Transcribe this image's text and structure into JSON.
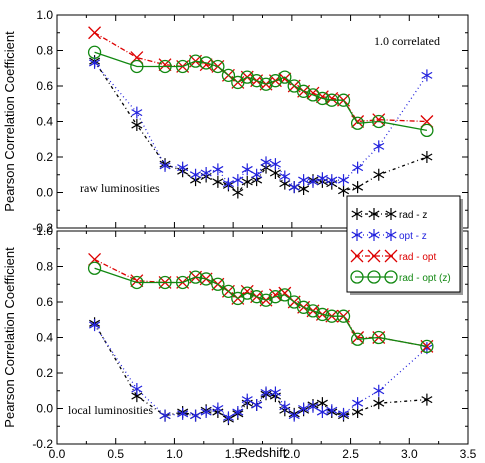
{
  "chart_data": [
    {
      "type": "line",
      "panel": "top",
      "xlim": [
        0.0,
        3.5
      ],
      "ylim": [
        -0.2,
        1.0
      ],
      "xticks": [],
      "yticks": [
        "-0.2",
        "0.0",
        "0.2",
        "0.4",
        "0.6",
        "0.8",
        "1.0"
      ],
      "xlabel": "",
      "ylabel": "Pearson Correlation Coefficient",
      "annotations": [
        "1.0 correlated",
        "raw luminosities"
      ],
      "series": [
        {
          "name": "rad - z",
          "color": "#000000",
          "marker": "asterisk",
          "dash": "3,3,1,3",
          "x": [
            0.32,
            0.68,
            0.92,
            1.07,
            1.18,
            1.27,
            1.37,
            1.46,
            1.54,
            1.62,
            1.7,
            1.78,
            1.86,
            1.94,
            2.02,
            2.1,
            2.18,
            2.26,
            2.34,
            2.44,
            2.56,
            2.74,
            3.15
          ],
          "y": [
            0.74,
            0.38,
            0.16,
            0.12,
            0.07,
            0.09,
            0.06,
            0.04,
            0.0,
            0.06,
            0.07,
            0.14,
            0.11,
            0.05,
            0.03,
            0.02,
            0.07,
            0.06,
            0.05,
            0.01,
            0.03,
            0.1,
            0.2
          ]
        },
        {
          "name": "opt - z",
          "color": "#2222dd",
          "marker": "asterisk",
          "dash": "1,3",
          "x": [
            0.32,
            0.68,
            0.92,
            1.07,
            1.18,
            1.27,
            1.37,
            1.46,
            1.54,
            1.62,
            1.7,
            1.78,
            1.86,
            1.94,
            2.02,
            2.1,
            2.18,
            2.26,
            2.34,
            2.44,
            2.56,
            2.74,
            3.15
          ],
          "y": [
            0.73,
            0.45,
            0.15,
            0.14,
            0.1,
            0.11,
            0.13,
            0.05,
            0.07,
            0.13,
            0.1,
            0.17,
            0.16,
            0.09,
            0.03,
            0.07,
            0.06,
            0.08,
            0.07,
            0.07,
            0.14,
            0.26,
            0.66
          ]
        },
        {
          "name": "rad - opt",
          "color": "#dd0000",
          "marker": "x",
          "dash": "5,2,1,2",
          "x": [
            0.32,
            0.68,
            0.92,
            1.07,
            1.18,
            1.27,
            1.37,
            1.46,
            1.54,
            1.62,
            1.7,
            1.78,
            1.86,
            1.94,
            2.02,
            2.1,
            2.18,
            2.26,
            2.34,
            2.44,
            2.56,
            2.74,
            3.15
          ],
          "y": [
            0.9,
            0.76,
            0.72,
            0.71,
            0.74,
            0.72,
            0.71,
            0.66,
            0.62,
            0.65,
            0.63,
            0.61,
            0.63,
            0.64,
            0.6,
            0.57,
            0.56,
            0.54,
            0.53,
            0.52,
            0.4,
            0.41,
            0.4
          ]
        },
        {
          "name": "rad - opt (z)",
          "color": "#118811",
          "marker": "circle",
          "dash": "",
          "x": [
            0.32,
            0.68,
            0.92,
            1.07,
            1.18,
            1.27,
            1.37,
            1.46,
            1.54,
            1.62,
            1.7,
            1.78,
            1.86,
            1.94,
            2.02,
            2.1,
            2.18,
            2.26,
            2.34,
            2.44,
            2.56,
            2.74,
            3.15
          ],
          "y": [
            0.79,
            0.71,
            0.71,
            0.71,
            0.74,
            0.73,
            0.71,
            0.66,
            0.62,
            0.65,
            0.63,
            0.61,
            0.63,
            0.65,
            0.6,
            0.57,
            0.55,
            0.53,
            0.52,
            0.52,
            0.39,
            0.4,
            0.35
          ]
        }
      ]
    },
    {
      "type": "line",
      "panel": "bottom",
      "xlim": [
        0.0,
        3.5
      ],
      "ylim": [
        -0.2,
        1.0
      ],
      "xticks": [
        "0.0",
        "0.5",
        "1.0",
        "1.5",
        "2.0",
        "2.5",
        "3.0",
        "3.5"
      ],
      "yticks": [
        "-0.2",
        "0.0",
        "0.2",
        "0.4",
        "0.6",
        "0.8",
        "1.0"
      ],
      "xlabel": "Redshift",
      "ylabel": "Pearson Correlation Coefficient",
      "annotations": [
        "local luminosities"
      ],
      "series": [
        {
          "name": "rad - z",
          "color": "#000000",
          "marker": "asterisk",
          "dash": "3,3,1,3",
          "x": [
            0.32,
            0.68,
            0.92,
            1.07,
            1.18,
            1.27,
            1.37,
            1.46,
            1.54,
            1.62,
            1.7,
            1.78,
            1.86,
            1.94,
            2.02,
            2.1,
            2.18,
            2.26,
            2.34,
            2.44,
            2.56,
            2.74,
            3.15
          ],
          "y": [
            0.48,
            0.07,
            -0.04,
            -0.02,
            -0.04,
            -0.01,
            -0.02,
            -0.06,
            -0.03,
            0.03,
            0.02,
            0.08,
            0.07,
            -0.01,
            -0.03,
            -0.01,
            0.02,
            0.03,
            -0.02,
            -0.04,
            -0.02,
            0.03,
            0.05
          ]
        },
        {
          "name": "opt - z",
          "color": "#2222dd",
          "marker": "asterisk",
          "dash": "1,3",
          "x": [
            0.32,
            0.68,
            0.92,
            1.07,
            1.18,
            1.27,
            1.37,
            1.46,
            1.54,
            1.62,
            1.7,
            1.78,
            1.86,
            1.94,
            2.02,
            2.1,
            2.18,
            2.26,
            2.34,
            2.44,
            2.56,
            2.74,
            3.15
          ],
          "y": [
            0.47,
            0.11,
            -0.04,
            -0.03,
            -0.04,
            -0.02,
            0.0,
            -0.05,
            -0.02,
            0.05,
            0.02,
            0.09,
            0.09,
            0.01,
            -0.04,
            0.0,
            0.01,
            -0.02,
            -0.01,
            -0.03,
            0.03,
            0.1,
            0.34
          ]
        },
        {
          "name": "rad - opt",
          "color": "#dd0000",
          "marker": "x",
          "dash": "5,2,1,2",
          "x": [
            0.32,
            0.68,
            0.92,
            1.07,
            1.18,
            1.27,
            1.37,
            1.46,
            1.54,
            1.62,
            1.7,
            1.78,
            1.86,
            1.94,
            2.02,
            2.1,
            2.18,
            2.26,
            2.34,
            2.44,
            2.56,
            2.74,
            3.15
          ],
          "y": [
            0.84,
            0.72,
            0.71,
            0.71,
            0.74,
            0.73,
            0.7,
            0.66,
            0.62,
            0.66,
            0.63,
            0.61,
            0.64,
            0.65,
            0.6,
            0.57,
            0.55,
            0.53,
            0.52,
            0.52,
            0.4,
            0.4,
            0.35
          ]
        },
        {
          "name": "rad - opt (z)",
          "color": "#118811",
          "marker": "circle",
          "dash": "",
          "x": [
            0.32,
            0.68,
            0.92,
            1.07,
            1.18,
            1.27,
            1.37,
            1.46,
            1.54,
            1.62,
            1.7,
            1.78,
            1.86,
            1.94,
            2.02,
            2.1,
            2.18,
            2.26,
            2.34,
            2.44,
            2.56,
            2.74,
            3.15
          ],
          "y": [
            0.79,
            0.71,
            0.71,
            0.71,
            0.74,
            0.73,
            0.7,
            0.66,
            0.62,
            0.65,
            0.63,
            0.61,
            0.63,
            0.64,
            0.6,
            0.57,
            0.55,
            0.53,
            0.52,
            0.52,
            0.39,
            0.4,
            0.35
          ]
        }
      ]
    }
  ],
  "legend": {
    "placement": "right, spanning both panels",
    "entries": [
      "rad - z",
      "opt - z",
      "rad - opt",
      "rad - opt (z)"
    ],
    "colors": [
      "#000000",
      "#2222dd",
      "#dd0000",
      "#118811"
    ]
  }
}
